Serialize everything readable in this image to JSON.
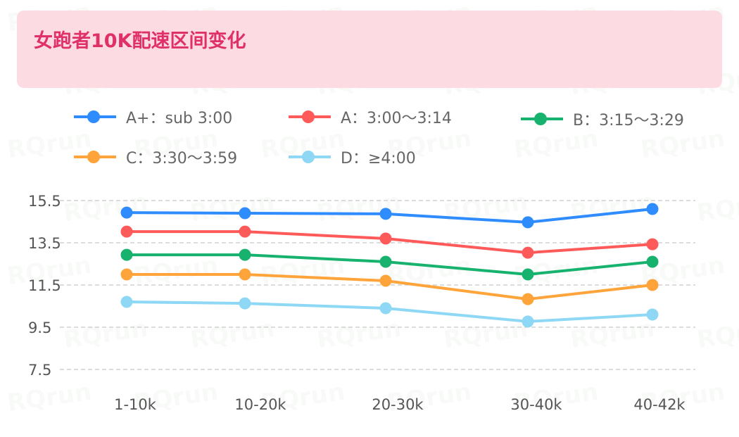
{
  "watermark": "RQrun",
  "chart_data": {
    "type": "line",
    "title": "女跑者10K配速区间变化",
    "categories": [
      "1-10k",
      "10-20k",
      "20-30k",
      "30-40k",
      "40-42k"
    ],
    "yticks": [
      15.5,
      13.5,
      11.5,
      9.5,
      7.5
    ],
    "ylim": [
      7.5,
      15.5
    ],
    "grid": true,
    "legend_position": "top",
    "series": [
      {
        "name": "A+：sub 3:00",
        "color": "#2f8cff",
        "values": [
          14.93,
          14.9,
          14.87,
          14.47,
          15.1
        ]
      },
      {
        "name": "A：3:00～3:14",
        "color": "#ff5a5a",
        "values": [
          14.03,
          14.03,
          13.7,
          13.03,
          13.43
        ]
      },
      {
        "name": "B：3:15～3:29",
        "color": "#17b36e",
        "values": [
          12.93,
          12.93,
          12.6,
          12.0,
          12.6
        ]
      },
      {
        "name": "C：3:30～3:59",
        "color": "#ffa43a",
        "values": [
          12.0,
          12.0,
          11.7,
          10.83,
          11.5
        ]
      },
      {
        "name": "D：≥4:00",
        "color": "#8ed8f5",
        "values": [
          10.7,
          10.63,
          10.4,
          9.77,
          10.1
        ]
      }
    ]
  }
}
